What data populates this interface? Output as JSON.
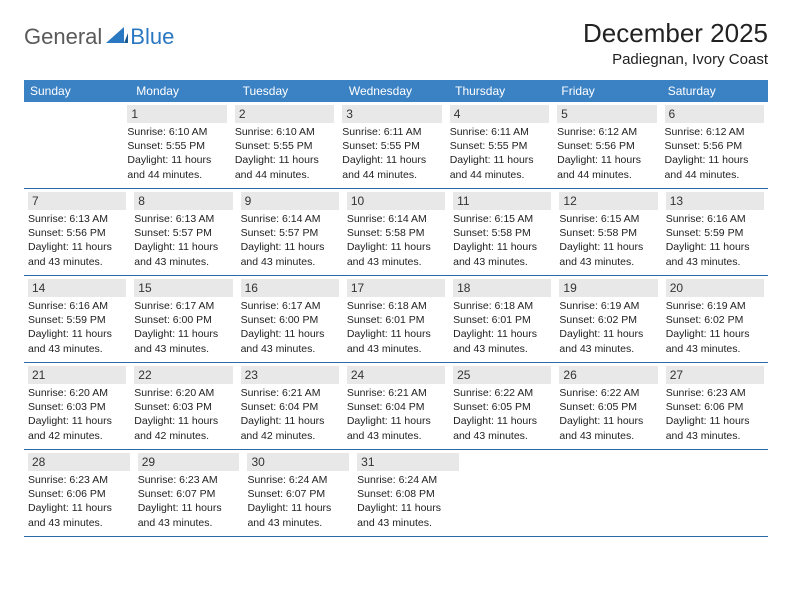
{
  "logo": {
    "text1": "General",
    "text2": "Blue"
  },
  "title": "December 2025",
  "location": "Padiegnan, Ivory Coast",
  "colors": {
    "header_bg": "#3b82c4",
    "header_text": "#ffffff",
    "daynum_bg": "#e8e8e8",
    "border": "#2b6aa8",
    "logo_gray": "#5a5a5a",
    "logo_blue": "#2b78c2"
  },
  "day_labels": [
    "Sunday",
    "Monday",
    "Tuesday",
    "Wednesday",
    "Thursday",
    "Friday",
    "Saturday"
  ],
  "weeks": [
    [
      null,
      {
        "n": "1",
        "sr": "6:10 AM",
        "ss": "5:55 PM",
        "dl": "11 hours and 44 minutes."
      },
      {
        "n": "2",
        "sr": "6:10 AM",
        "ss": "5:55 PM",
        "dl": "11 hours and 44 minutes."
      },
      {
        "n": "3",
        "sr": "6:11 AM",
        "ss": "5:55 PM",
        "dl": "11 hours and 44 minutes."
      },
      {
        "n": "4",
        "sr": "6:11 AM",
        "ss": "5:55 PM",
        "dl": "11 hours and 44 minutes."
      },
      {
        "n": "5",
        "sr": "6:12 AM",
        "ss": "5:56 PM",
        "dl": "11 hours and 44 minutes."
      },
      {
        "n": "6",
        "sr": "6:12 AM",
        "ss": "5:56 PM",
        "dl": "11 hours and 44 minutes."
      }
    ],
    [
      {
        "n": "7",
        "sr": "6:13 AM",
        "ss": "5:56 PM",
        "dl": "11 hours and 43 minutes."
      },
      {
        "n": "8",
        "sr": "6:13 AM",
        "ss": "5:57 PM",
        "dl": "11 hours and 43 minutes."
      },
      {
        "n": "9",
        "sr": "6:14 AM",
        "ss": "5:57 PM",
        "dl": "11 hours and 43 minutes."
      },
      {
        "n": "10",
        "sr": "6:14 AM",
        "ss": "5:58 PM",
        "dl": "11 hours and 43 minutes."
      },
      {
        "n": "11",
        "sr": "6:15 AM",
        "ss": "5:58 PM",
        "dl": "11 hours and 43 minutes."
      },
      {
        "n": "12",
        "sr": "6:15 AM",
        "ss": "5:58 PM",
        "dl": "11 hours and 43 minutes."
      },
      {
        "n": "13",
        "sr": "6:16 AM",
        "ss": "5:59 PM",
        "dl": "11 hours and 43 minutes."
      }
    ],
    [
      {
        "n": "14",
        "sr": "6:16 AM",
        "ss": "5:59 PM",
        "dl": "11 hours and 43 minutes."
      },
      {
        "n": "15",
        "sr": "6:17 AM",
        "ss": "6:00 PM",
        "dl": "11 hours and 43 minutes."
      },
      {
        "n": "16",
        "sr": "6:17 AM",
        "ss": "6:00 PM",
        "dl": "11 hours and 43 minutes."
      },
      {
        "n": "17",
        "sr": "6:18 AM",
        "ss": "6:01 PM",
        "dl": "11 hours and 43 minutes."
      },
      {
        "n": "18",
        "sr": "6:18 AM",
        "ss": "6:01 PM",
        "dl": "11 hours and 43 minutes."
      },
      {
        "n": "19",
        "sr": "6:19 AM",
        "ss": "6:02 PM",
        "dl": "11 hours and 43 minutes."
      },
      {
        "n": "20",
        "sr": "6:19 AM",
        "ss": "6:02 PM",
        "dl": "11 hours and 43 minutes."
      }
    ],
    [
      {
        "n": "21",
        "sr": "6:20 AM",
        "ss": "6:03 PM",
        "dl": "11 hours and 42 minutes."
      },
      {
        "n": "22",
        "sr": "6:20 AM",
        "ss": "6:03 PM",
        "dl": "11 hours and 42 minutes."
      },
      {
        "n": "23",
        "sr": "6:21 AM",
        "ss": "6:04 PM",
        "dl": "11 hours and 42 minutes."
      },
      {
        "n": "24",
        "sr": "6:21 AM",
        "ss": "6:04 PM",
        "dl": "11 hours and 43 minutes."
      },
      {
        "n": "25",
        "sr": "6:22 AM",
        "ss": "6:05 PM",
        "dl": "11 hours and 43 minutes."
      },
      {
        "n": "26",
        "sr": "6:22 AM",
        "ss": "6:05 PM",
        "dl": "11 hours and 43 minutes."
      },
      {
        "n": "27",
        "sr": "6:23 AM",
        "ss": "6:06 PM",
        "dl": "11 hours and 43 minutes."
      }
    ],
    [
      {
        "n": "28",
        "sr": "6:23 AM",
        "ss": "6:06 PM",
        "dl": "11 hours and 43 minutes."
      },
      {
        "n": "29",
        "sr": "6:23 AM",
        "ss": "6:07 PM",
        "dl": "11 hours and 43 minutes."
      },
      {
        "n": "30",
        "sr": "6:24 AM",
        "ss": "6:07 PM",
        "dl": "11 hours and 43 minutes."
      },
      {
        "n": "31",
        "sr": "6:24 AM",
        "ss": "6:08 PM",
        "dl": "11 hours and 43 minutes."
      },
      null,
      null,
      null
    ]
  ],
  "labels": {
    "sunrise": "Sunrise:",
    "sunset": "Sunset:",
    "daylight": "Daylight:"
  }
}
